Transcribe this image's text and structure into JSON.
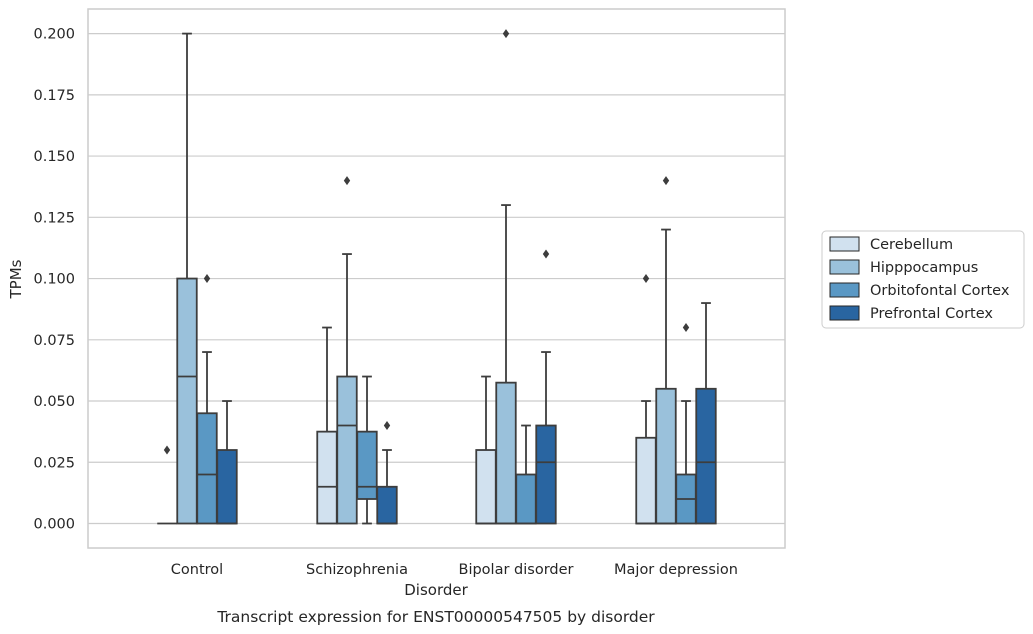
{
  "chart_data": {
    "type": "box",
    "title": "Transcript expression for ENST00000547505 by disorder",
    "xlabel": "Disorder",
    "ylabel": "TPMs",
    "ylim": [
      -0.01,
      0.21
    ],
    "yticks": [
      "0.000",
      "0.025",
      "0.050",
      "0.075",
      "0.100",
      "0.125",
      "0.150",
      "0.175",
      "0.200"
    ],
    "grid": "horizontal",
    "legend_position": "right",
    "categories": [
      "Control",
      "Schizophrenia",
      "Bipolar disorder",
      "Major depression"
    ],
    "series": [
      {
        "name": "Cerebellum",
        "color": "#d1e1ef",
        "boxes": [
          {
            "q1": 0.0,
            "median": 0.0,
            "q3": 0.0,
            "whisker_low": 0.0,
            "whisker_high": 0.0,
            "outliers": [
              0.03
            ]
          },
          {
            "q1": 0.0,
            "median": 0.015,
            "q3": 0.0375,
            "whisker_low": 0.0,
            "whisker_high": 0.08,
            "outliers": []
          },
          {
            "q1": 0.0,
            "median": 0.0,
            "q3": 0.03,
            "whisker_low": 0.0,
            "whisker_high": 0.06,
            "outliers": []
          },
          {
            "q1": 0.0,
            "median": 0.0,
            "q3": 0.035,
            "whisker_low": 0.0,
            "whisker_high": 0.05,
            "outliers": [
              0.1
            ]
          }
        ]
      },
      {
        "name": "Hipppocampus",
        "color": "#9ac1db",
        "boxes": [
          {
            "q1": 0.0,
            "median": 0.06,
            "q3": 0.1,
            "whisker_low": 0.0,
            "whisker_high": 0.2,
            "outliers": []
          },
          {
            "q1": 0.0,
            "median": 0.04,
            "q3": 0.06,
            "whisker_low": 0.0,
            "whisker_high": 0.11,
            "outliers": [
              0.14
            ]
          },
          {
            "q1": 0.0,
            "median": 0.0,
            "q3": 0.0575,
            "whisker_low": 0.0,
            "whisker_high": 0.13,
            "outliers": [
              0.2
            ]
          },
          {
            "q1": 0.0,
            "median": 0.0,
            "q3": 0.055,
            "whisker_low": 0.0,
            "whisker_high": 0.12,
            "outliers": [
              0.14
            ]
          }
        ]
      },
      {
        "name": "Orbitofontal Cortex",
        "color": "#5a98c4",
        "boxes": [
          {
            "q1": 0.0,
            "median": 0.02,
            "q3": 0.045,
            "whisker_low": 0.0,
            "whisker_high": 0.07,
            "outliers": [
              0.1
            ]
          },
          {
            "q1": 0.01,
            "median": 0.015,
            "q3": 0.0375,
            "whisker_low": 0.0,
            "whisker_high": 0.06,
            "outliers": []
          },
          {
            "q1": 0.0,
            "median": 0.0,
            "q3": 0.02,
            "whisker_low": 0.0,
            "whisker_high": 0.04,
            "outliers": []
          },
          {
            "q1": 0.0,
            "median": 0.01,
            "q3": 0.02,
            "whisker_low": 0.0,
            "whisker_high": 0.05,
            "outliers": [
              0.08
            ]
          }
        ]
      },
      {
        "name": "Prefrontal Cortex",
        "color": "#2965a1",
        "boxes": [
          {
            "q1": 0.0,
            "median": 0.0,
            "q3": 0.03,
            "whisker_low": 0.0,
            "whisker_high": 0.05,
            "outliers": []
          },
          {
            "q1": 0.0,
            "median": 0.0,
            "q3": 0.015,
            "whisker_low": 0.0,
            "whisker_high": 0.03,
            "outliers": [
              0.04
            ]
          },
          {
            "q1": 0.0,
            "median": 0.025,
            "q3": 0.04,
            "whisker_low": 0.0,
            "whisker_high": 0.07,
            "outliers": [
              0.11
            ]
          },
          {
            "q1": 0.0,
            "median": 0.025,
            "q3": 0.055,
            "whisker_low": 0.0,
            "whisker_high": 0.09,
            "outliers": []
          }
        ]
      }
    ]
  }
}
